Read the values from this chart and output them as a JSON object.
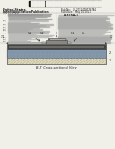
{
  "bg_color": "#f0efe8",
  "barcode_color": "#111111",
  "text_dark": "#222222",
  "text_gray": "#888888",
  "text_med": "#555555",
  "divider_color": "#aaaaaa",
  "diagram_label": "B-B' Cross-sectional View",
  "layer1_color": "#ddd8c0",
  "layer1_hatch_color": "#b8b090",
  "layer2_color": "#8899aa",
  "layer2_light_color": "#aabbcc",
  "layer3_color": "#444444",
  "gate_body_color": "#888880",
  "gate_top_color": "#aaaaaa",
  "gate_left_color": "#666660",
  "gate_right_color": "#999990",
  "labels_top": [
    "6-2",
    "6-2",
    "3",
    "5-1",
    "6-1"
  ],
  "label_left": "7-1",
  "label_right": "7-2",
  "label_2": "2",
  "label_1": "1",
  "border_color": "#666666"
}
